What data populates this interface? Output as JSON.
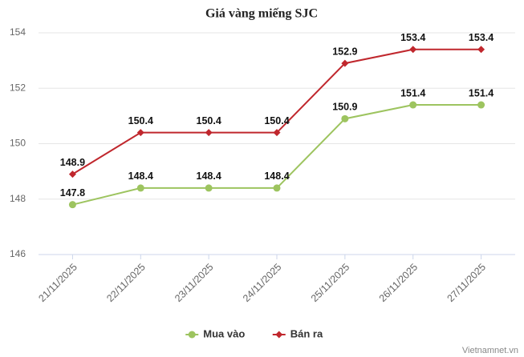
{
  "chart_data": {
    "type": "line",
    "title": "Giá vàng miếng SJC",
    "categories": [
      "21/11/2025",
      "22/11/2025",
      "23/11/2025",
      "24/11/2025",
      "25/11/2025",
      "26/11/2025",
      "27/11/2025"
    ],
    "series": [
      {
        "name": "Mua vào",
        "color": "#9dc45f",
        "marker": "circle",
        "values": [
          147.8,
          148.4,
          148.4,
          148.4,
          150.9,
          151.4,
          151.4
        ]
      },
      {
        "name": "Bán ra",
        "color": "#c0272d",
        "marker": "diamond",
        "values": [
          148.9,
          150.4,
          150.4,
          150.4,
          152.9,
          153.4,
          153.4
        ]
      }
    ],
    "ylim": [
      146,
      154
    ],
    "yticks": [
      146,
      148,
      150,
      152,
      154
    ],
    "grid": true,
    "legend": "bottom",
    "watermark": "Vietnamnet.vn"
  }
}
